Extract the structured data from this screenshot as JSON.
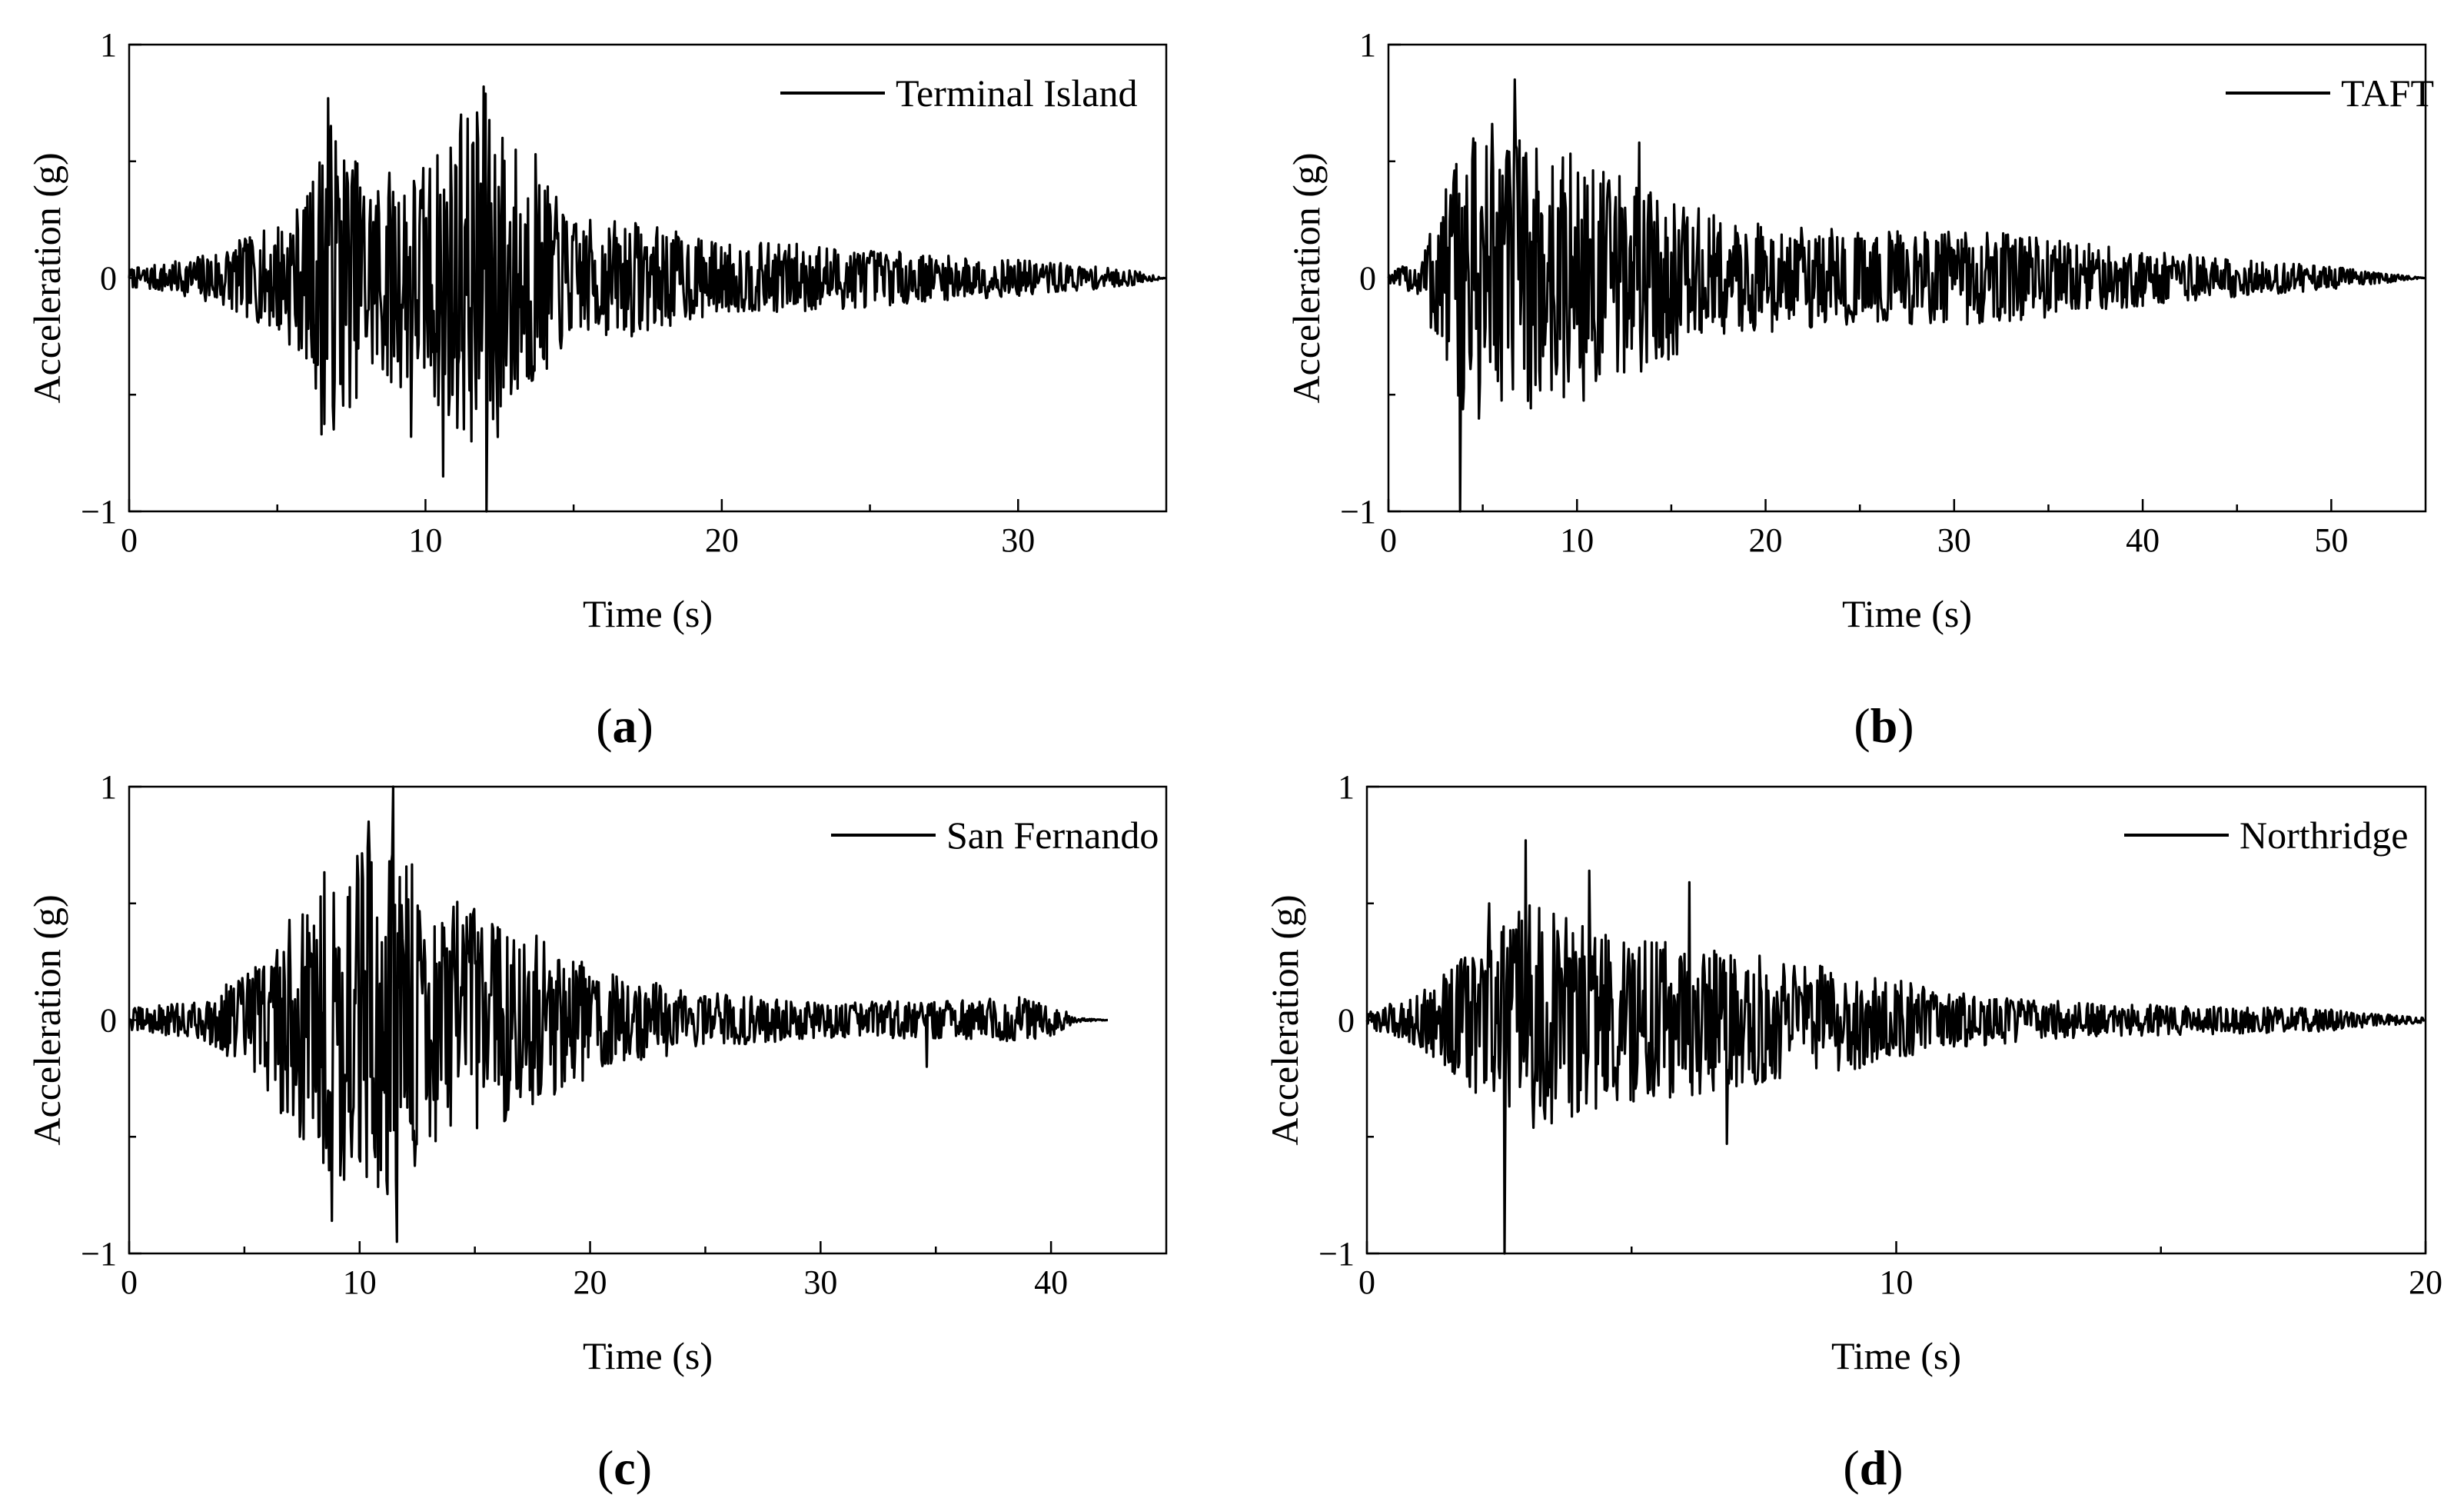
{
  "chart_data": [
    {
      "type": "line",
      "panel": "a",
      "caption": "(a)",
      "xlabel": "Time (s)",
      "ylabel": "Acceleration (g)",
      "xlim": [
        0,
        35
      ],
      "ylim": [
        -1,
        1
      ],
      "xticks": [
        0,
        10,
        20,
        30
      ],
      "yticks": [
        -1,
        0,
        1
      ],
      "ytick_labels": [
        "−1",
        "0",
        "1"
      ],
      "legend_position": "top-right",
      "grid": false,
      "series": [
        {
          "name": "Terminal Island",
          "duration": 35,
          "peaks": [
            [
              6.7,
              0.77
            ],
            [
              6.5,
              -0.67
            ],
            [
              9.5,
              -0.68
            ],
            [
              10.6,
              -0.85
            ],
            [
              11.2,
              0.7
            ],
            [
              11.95,
              0.82
            ],
            [
              12.05,
              -1.0
            ],
            [
              13.7,
              0.53
            ]
          ],
          "envelope": [
            [
              0,
              0.04
            ],
            [
              2,
              0.08
            ],
            [
              4.5,
              0.2
            ],
            [
              6,
              0.35
            ],
            [
              6.7,
              0.7
            ],
            [
              8,
              0.45
            ],
            [
              10,
              0.5
            ],
            [
              11,
              0.65
            ],
            [
              12,
              0.8
            ],
            [
              13.5,
              0.5
            ],
            [
              15,
              0.25
            ],
            [
              17,
              0.25
            ],
            [
              20,
              0.15
            ],
            [
              23,
              0.15
            ],
            [
              27,
              0.1
            ],
            [
              31,
              0.07
            ],
            [
              34,
              0.03
            ],
            [
              35,
              0.0
            ]
          ]
        }
      ]
    },
    {
      "type": "line",
      "panel": "b",
      "caption": "(b)",
      "xlabel": "Time (s)",
      "ylabel": "Acceleration (g)",
      "xlim": [
        0,
        55
      ],
      "ylim": [
        -1,
        1
      ],
      "xticks": [
        0,
        10,
        20,
        30,
        40,
        50
      ],
      "yticks": [
        -1,
        0,
        1
      ],
      "ytick_labels": [
        "−1",
        "0",
        "1"
      ],
      "legend_position": "top-right",
      "grid": false,
      "series": [
        {
          "name": "TAFT",
          "duration": 55,
          "peaks": [
            [
              3.8,
              -1.0
            ],
            [
              6.7,
              0.85
            ],
            [
              5.5,
              0.66
            ],
            [
              13.3,
              0.58
            ]
          ],
          "envelope": [
            [
              0,
              0.02
            ],
            [
              1.5,
              0.08
            ],
            [
              3,
              0.4
            ],
            [
              4,
              0.6
            ],
            [
              6,
              0.65
            ],
            [
              8,
              0.55
            ],
            [
              10,
              0.55
            ],
            [
              12,
              0.45
            ],
            [
              15,
              0.35
            ],
            [
              18,
              0.25
            ],
            [
              25,
              0.2
            ],
            [
              32,
              0.2
            ],
            [
              40,
              0.12
            ],
            [
              45,
              0.08
            ],
            [
              50,
              0.05
            ],
            [
              55,
              0.0
            ]
          ]
        }
      ]
    },
    {
      "type": "line",
      "panel": "c",
      "caption": "(c)",
      "xlabel": "Time (s)",
      "ylabel": "Acceleration (g)",
      "xlim": [
        0,
        45
      ],
      "ylim": [
        -1,
        1
      ],
      "xticks": [
        0,
        10,
        20,
        30,
        40
      ],
      "yticks": [
        -1,
        0,
        1
      ],
      "ytick_labels": [
        "−1",
        "0",
        "1"
      ],
      "legend_position": "top-right",
      "grid": false,
      "series": [
        {
          "name": "San Fernando",
          "duration": 42.5,
          "peaks": [
            [
              8.8,
              -0.86
            ],
            [
              10.4,
              0.85
            ],
            [
              11.45,
              1.0
            ],
            [
              11.6,
              -0.95
            ],
            [
              34.6,
              -0.2
            ]
          ],
          "envelope": [
            [
              0,
              0.05
            ],
            [
              3,
              0.08
            ],
            [
              5,
              0.2
            ],
            [
              7,
              0.45
            ],
            [
              9,
              0.7
            ],
            [
              11.5,
              0.8
            ],
            [
              13,
              0.55
            ],
            [
              16,
              0.45
            ],
            [
              19,
              0.3
            ],
            [
              21,
              0.2
            ],
            [
              25,
              0.12
            ],
            [
              30,
              0.08
            ],
            [
              35,
              0.08
            ],
            [
              39,
              0.1
            ],
            [
              40.5,
              0.05
            ],
            [
              41,
              0.01
            ],
            [
              42.5,
              0.0
            ]
          ]
        }
      ]
    },
    {
      "type": "line",
      "panel": "d",
      "caption": "(d)",
      "xlabel": "Time (s)",
      "ylabel": "Acceleration (g)",
      "xlim": [
        0,
        20
      ],
      "ylim": [
        -1,
        1
      ],
      "xticks": [
        0,
        10,
        20
      ],
      "yticks": [
        -1,
        0,
        1
      ],
      "ytick_labels": [
        "−1",
        "0",
        "1"
      ],
      "legend_position": "top-right",
      "grid": false,
      "series": [
        {
          "name": "Northridge",
          "duration": 20,
          "peaks": [
            [
              2.3,
              0.5
            ],
            [
              2.6,
              -1.0
            ],
            [
              3.0,
              0.77
            ],
            [
              4.2,
              0.64
            ],
            [
              6.1,
              0.59
            ],
            [
              6.8,
              -0.53
            ]
          ],
          "envelope": [
            [
              0,
              0.03
            ],
            [
              1,
              0.12
            ],
            [
              2,
              0.3
            ],
            [
              3,
              0.5
            ],
            [
              5,
              0.35
            ],
            [
              7,
              0.3
            ],
            [
              9.5,
              0.2
            ],
            [
              11,
              0.12
            ],
            [
              14,
              0.07
            ],
            [
              18,
              0.05
            ],
            [
              20,
              0.01
            ]
          ]
        }
      ]
    }
  ]
}
